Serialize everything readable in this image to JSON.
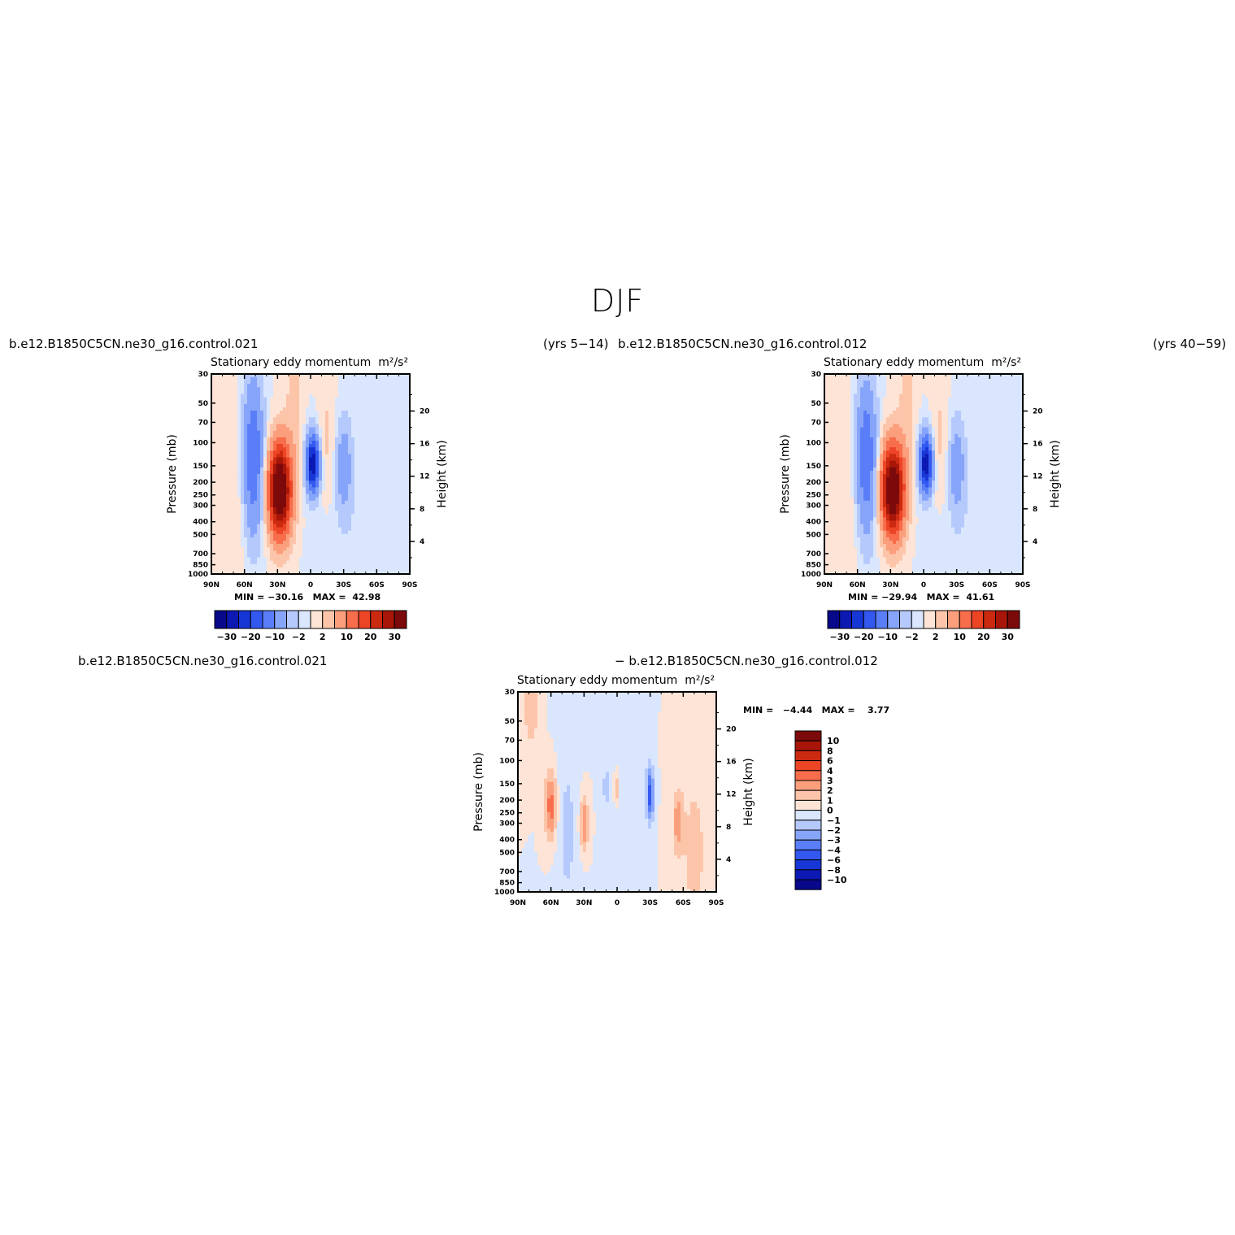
{
  "title": "DJF",
  "panels": [
    {
      "case_left": "b.e12.B1850C5CN.ne30_g16.control.021",
      "case_right": "(yrs 5−14)",
      "plot_title": "Stationary eddy momentum",
      "units": "m²/s²",
      "min_label": "MIN =",
      "min_value": "−30.16",
      "max_label": "MAX =",
      "max_value": "42.98"
    },
    {
      "case_left": "b.e12.B1850C5CN.ne30_g16.control.012",
      "case_right": "(yrs 40−59)",
      "plot_title": "Stationary eddy momentum",
      "units": "m²/s²",
      "min_label": "MIN =",
      "min_value": "−29.94",
      "max_label": "MAX =",
      "max_value": "41.61"
    },
    {
      "case_left": "b.e12.B1850C5CN.ne30_g16.control.021",
      "case_right": "− b.e12.B1850C5CN.ne30_g16.control.012",
      "plot_title": "Stationary eddy momentum",
      "units": "m²/s²",
      "min_label": "MIN =",
      "min_value": "−4.44",
      "max_label": "MAX =",
      "max_value": "3.77"
    }
  ],
  "chart_data": [
    {
      "type": "heatmap",
      "title": "Stationary eddy momentum",
      "xlabel": "",
      "ylabel": "Pressure (mb)",
      "y2label": "Height (km)",
      "x_ticks": [
        "90N",
        "60N",
        "30N",
        "0",
        "30S",
        "60S",
        "90S"
      ],
      "y_ticks": [
        "30",
        "50",
        "70",
        "100",
        "150",
        "200",
        "250",
        "300",
        "400",
        "500",
        "700",
        "850",
        "1000"
      ],
      "y2_ticks": [
        "20",
        "16",
        "12",
        "8",
        "4"
      ],
      "y_scale": "log",
      "colorbar": {
        "orientation": "horizontal",
        "labels": [
          "−30",
          "−20",
          "−10",
          "−2",
          "2",
          "10",
          "20",
          "30"
        ]
      },
      "min": -30.16,
      "max": 42.98
    },
    {
      "type": "heatmap",
      "title": "Stationary eddy momentum",
      "xlabel": "",
      "ylabel": "Pressure (mb)",
      "y2label": "Height (km)",
      "x_ticks": [
        "90N",
        "60N",
        "30N",
        "0",
        "30S",
        "60S",
        "90S"
      ],
      "y_ticks": [
        "30",
        "50",
        "70",
        "100",
        "150",
        "200",
        "250",
        "300",
        "400",
        "500",
        "700",
        "850",
        "1000"
      ],
      "y2_ticks": [
        "20",
        "16",
        "12",
        "8",
        "4"
      ],
      "y_scale": "log",
      "colorbar": {
        "orientation": "horizontal",
        "labels": [
          "−30",
          "−20",
          "−10",
          "−2",
          "2",
          "10",
          "20",
          "30"
        ]
      },
      "min": -29.94,
      "max": 41.61
    },
    {
      "type": "heatmap",
      "title": "Stationary eddy momentum",
      "xlabel": "",
      "ylabel": "Pressure (mb)",
      "y2label": "Height (km)",
      "x_ticks": [
        "90N",
        "60N",
        "30N",
        "0",
        "30S",
        "60S",
        "90S"
      ],
      "y_ticks": [
        "30",
        "50",
        "70",
        "100",
        "150",
        "200",
        "250",
        "300",
        "400",
        "500",
        "700",
        "850",
        "1000"
      ],
      "y2_ticks": [
        "20",
        "16",
        "12",
        "8",
        "4"
      ],
      "y_scale": "log",
      "colorbar": {
        "orientation": "vertical",
        "labels": [
          "10",
          "8",
          "6",
          "4",
          "3",
          "2",
          "1",
          "0",
          "−1",
          "−2",
          "−3",
          "−4",
          "−6",
          "−8",
          "−10"
        ]
      },
      "min": -4.44,
      "max": 3.77
    }
  ],
  "colors": {
    "full_scale": [
      "#08088a",
      "#0c19b3",
      "#1736d6",
      "#3358f0",
      "#5a7ef7",
      "#86a5fa",
      "#b5c9fc",
      "#d9e6fd",
      "#fde4d6",
      "#fcc5aa",
      "#fb9e7c",
      "#f86d4b",
      "#ec4526",
      "#cc2a10",
      "#a71608",
      "#7d0a0a"
    ],
    "diff_scale": [
      "#7d0a0a",
      "#a71608",
      "#cc2a10",
      "#ec4526",
      "#f86d4b",
      "#fb9e7c",
      "#fcc5aa",
      "#fde4d6",
      "#d9e6fd",
      "#b5c9fc",
      "#86a5fa",
      "#5a7ef7",
      "#3358f0",
      "#1736d6",
      "#0c19b3",
      "#08088a"
    ]
  }
}
